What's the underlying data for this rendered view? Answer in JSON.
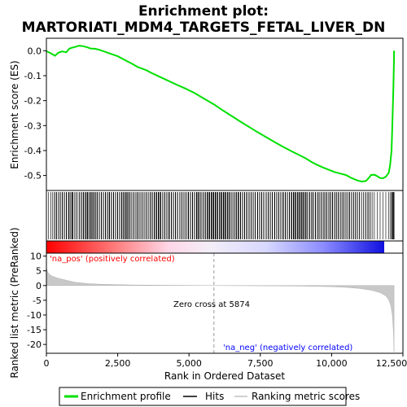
{
  "chart_data": {
    "type": "line",
    "title_line1": "Enrichment plot:",
    "title_line2": "MARTORIATI_MDM4_TARGETS_FETAL_LIVER_DN",
    "top_panel": {
      "ylabel": "Enrichment score (ES)",
      "ylim": [
        -0.56,
        0.05
      ],
      "yticks": [
        0.0,
        -0.1,
        -0.2,
        -0.3,
        -0.4,
        -0.5
      ],
      "ytick_labels": [
        "0.0",
        "-0.1",
        "-0.2",
        "-0.3",
        "-0.4",
        "-0.5"
      ],
      "series": [
        {
          "name": "Enrichment profile",
          "color": "#00e000",
          "x": [
            0,
            150,
            300,
            420,
            550,
            700,
            800,
            900,
            1000,
            1150,
            1300,
            1450,
            1550,
            1700,
            1850,
            2000,
            2200,
            2500,
            2800,
            3000,
            3200,
            3500,
            3700,
            4000,
            4300,
            4600,
            4900,
            5200,
            5500,
            5874,
            6200,
            6500,
            6800,
            7100,
            7400,
            7700,
            8000,
            8300,
            8600,
            8900,
            9100,
            9300,
            9500,
            9700,
            9900,
            10100,
            10300,
            10500,
            10700,
            10900,
            11050,
            11200,
            11300,
            11380,
            11500,
            11600,
            11700,
            11800,
            11900,
            12000,
            12050,
            12100,
            12120,
            12140,
            12160,
            12175,
            12185,
            12190
          ],
          "y": [
            -0.002,
            -0.01,
            -0.02,
            -0.008,
            -0.003,
            -0.006,
            0.008,
            0.012,
            0.015,
            0.02,
            0.018,
            0.013,
            0.009,
            0.008,
            0.004,
            -0.002,
            -0.01,
            -0.022,
            -0.04,
            -0.052,
            -0.065,
            -0.078,
            -0.09,
            -0.106,
            -0.122,
            -0.138,
            -0.153,
            -0.17,
            -0.19,
            -0.215,
            -0.24,
            -0.262,
            -0.284,
            -0.305,
            -0.326,
            -0.346,
            -0.366,
            -0.385,
            -0.403,
            -0.42,
            -0.432,
            -0.446,
            -0.458,
            -0.468,
            -0.477,
            -0.486,
            -0.492,
            -0.498,
            -0.51,
            -0.52,
            -0.524,
            -0.522,
            -0.51,
            -0.498,
            -0.497,
            -0.503,
            -0.51,
            -0.511,
            -0.505,
            -0.49,
            -0.46,
            -0.4,
            -0.33,
            -0.25,
            -0.17,
            -0.1,
            -0.04,
            0.0
          ]
        }
      ]
    },
    "hits_panel": {
      "legend_label": "Hits"
    },
    "bottom_panel": {
      "ylabel": "Ranked list metric (PreRanked)",
      "xlabel": "Rank in Ordered Dataset",
      "ylim": [
        -23,
        11
      ],
      "yticks": [
        10,
        5,
        0,
        -5,
        -10,
        -15,
        -20
      ],
      "ytick_labels": [
        "10",
        "5",
        "0",
        "-5",
        "-10",
        "-15",
        "-20"
      ],
      "xlim": [
        0,
        12500
      ],
      "xticks": [
        0,
        2500,
        5000,
        7500,
        10000,
        12500
      ],
      "xtick_labels": [
        "0",
        "2,500",
        "5,000",
        "7,500",
        "10,000",
        "12,500"
      ],
      "metric_curve": {
        "x": [
          0,
          30,
          100,
          200,
          400,
          700,
          1000,
          1500,
          2000,
          3000,
          4000,
          5000,
          5874,
          7000,
          8000,
          9000,
          10000,
          10500,
          11000,
          11400,
          11700,
          11900,
          12000,
          12080,
          12130,
          12170,
          12190
        ],
        "y": [
          6.2,
          4.8,
          3.8,
          3.2,
          2.5,
          1.8,
          1.1,
          0.6,
          0.4,
          0.2,
          0.1,
          0.05,
          0.0,
          -0.05,
          -0.1,
          -0.2,
          -0.4,
          -0.6,
          -1.0,
          -1.6,
          -2.4,
          -3.5,
          -4.8,
          -7.0,
          -10.0,
          -16.0,
          -22.5
        ]
      },
      "zero_cross_rank": 5874,
      "zero_cross_label": "Zero cross at 5874",
      "pos_label": "'na_pos' (positively correlated)",
      "neg_label": "'na_neg' (negatively correlated)",
      "pos_color": "#ff0000",
      "neg_color": "#0000ff"
    },
    "legend": [
      {
        "label": "Enrichment profile",
        "color": "#00e000"
      },
      {
        "label": "Hits",
        "color": "#000000"
      },
      {
        "label": "Ranking metric scores",
        "color": "#c0c0c0"
      }
    ],
    "grid": false,
    "legend_placement": "bottom"
  }
}
